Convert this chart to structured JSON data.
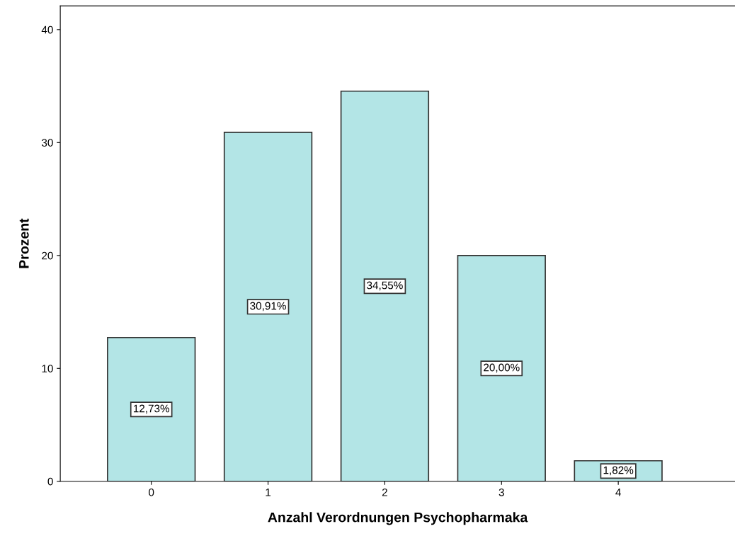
{
  "chart_data": {
    "type": "bar",
    "xlabel": "Anzahl Verordnungen Psychopharmaka",
    "ylabel": "Prozent",
    "categories": [
      "0",
      "1",
      "2",
      "3",
      "4"
    ],
    "values": [
      12.73,
      30.91,
      34.55,
      20.0,
      1.82
    ],
    "value_labels": [
      "12,73%",
      "30,91%",
      "34,55%",
      "20,00%",
      "1,82%"
    ],
    "color": "#b3e5e6",
    "ylim": [
      0,
      42.1
    ],
    "yticks": [
      0,
      10,
      20,
      30,
      40
    ],
    "grid": false,
    "legend": false
  }
}
